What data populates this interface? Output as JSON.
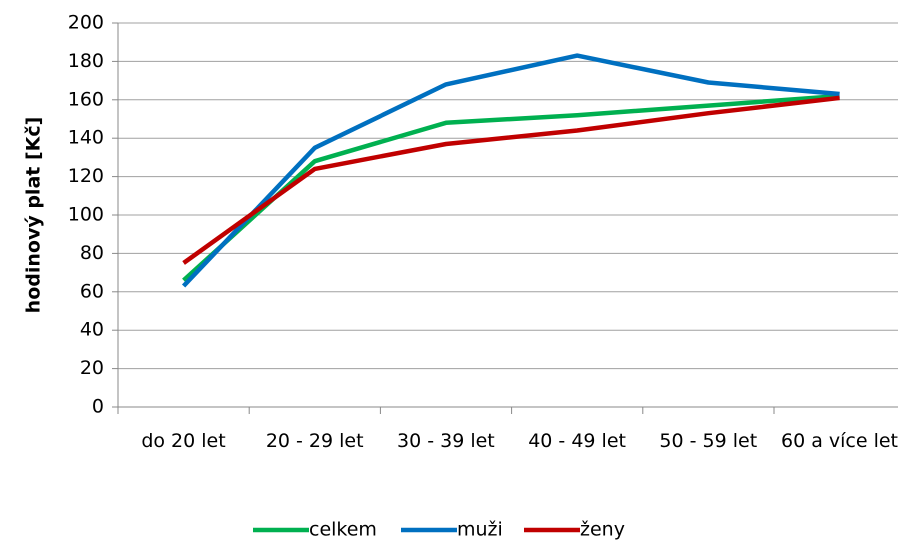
{
  "chart_data": {
    "type": "line",
    "ylabel": "hodinový plat [Kč]",
    "categories": [
      "do 20 let",
      "20 - 29 let",
      "30 - 39 let",
      "40 - 49 let",
      "50 - 59 let",
      "60 a více let"
    ],
    "series": [
      {
        "name": "celkem",
        "color": "#00b050",
        "values": [
          66,
          128,
          148,
          152,
          157,
          162
        ]
      },
      {
        "name": "muži",
        "color": "#0070c0",
        "values": [
          63,
          135,
          168,
          183,
          169,
          163
        ]
      },
      {
        "name": "ženy",
        "color": "#c00000",
        "values": [
          75,
          124,
          137,
          144,
          153,
          161
        ]
      }
    ],
    "ylim": [
      0,
      200
    ],
    "yticks": [
      0,
      20,
      40,
      60,
      80,
      100,
      120,
      140,
      160,
      180,
      200
    ],
    "grid": true,
    "legend": "bottom"
  }
}
